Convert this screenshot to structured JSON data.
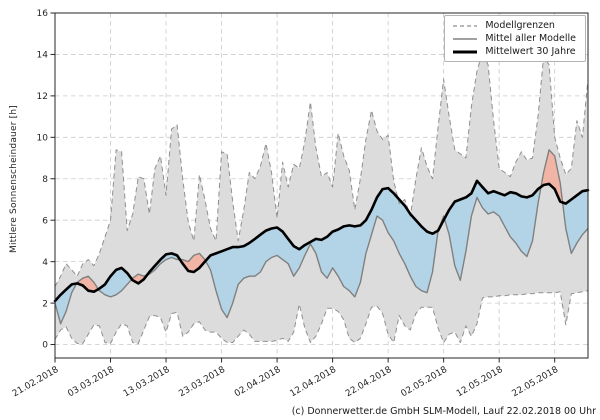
{
  "caption": "(c) Donnerwetter.de GmbH SLM-Modell, Lauf 22.02.2018 00 Uhr",
  "chart_data": {
    "type": "line",
    "title": "",
    "xlabel": "",
    "ylabel": "Mittlere Sonnenscheindauer [h]",
    "ylim": [
      -0.65,
      16
    ],
    "y_ticks": [
      0,
      2,
      4,
      6,
      8,
      10,
      12,
      14,
      16
    ],
    "x_total_days": 96,
    "x_tick_days": [
      0,
      10,
      20,
      30,
      40,
      50,
      60,
      70,
      80,
      90
    ],
    "x_tick_labels": [
      "21.02.2018",
      "03.03.2018",
      "13.03.2018",
      "23.03.2018",
      "02.04.2018",
      "12.04.2018",
      "22.04.2018",
      "02.05.2018",
      "12.05.2018",
      "22.05.2018"
    ],
    "grid": "dashed",
    "legend_position": "top-right",
    "legend": [
      {
        "label": "Modellgrenzen",
        "style": "dashed-gray"
      },
      {
        "label": "Mittel aller Modelle",
        "style": "solid-gray"
      },
      {
        "label": "Mittelwert 30 Jahre",
        "style": "thick-black"
      }
    ],
    "series": [
      {
        "name": "Modellgrenzen (Maximum)",
        "values": [
          2.8,
          3.3,
          3.9,
          3.6,
          3.3,
          3.9,
          4.1,
          3.8,
          4.4,
          5.2,
          6.0,
          9.4,
          9.3,
          5.5,
          6.3,
          8.1,
          8.0,
          6.3,
          8.5,
          9.1,
          7.2,
          10.4,
          10.6,
          8.0,
          5.9,
          5.0,
          8.2,
          7.0,
          5.6,
          5.0,
          9.3,
          9.2,
          6.9,
          5.0,
          6.5,
          8.3,
          8.0,
          8.6,
          9.7,
          8.3,
          6.1,
          8.8,
          7.6,
          8.7,
          8.5,
          9.8,
          11.7,
          9.5,
          8.1,
          8.3,
          7.6,
          10.2,
          9.1,
          8.4,
          6.5,
          8.0,
          9.9,
          11.3,
          10.3,
          9.9,
          10.1,
          7.9,
          6.8,
          7.0,
          6.2,
          8.0,
          9.5,
          8.6,
          8.0,
          10.5,
          12.8,
          11.0,
          9.4,
          9.2,
          9.0,
          11.5,
          13.2,
          14.1,
          13.5,
          10.8,
          8.5,
          8.3,
          8.1,
          8.8,
          9.3,
          8.9,
          9.0,
          11.0,
          13.9,
          13.5,
          10.0,
          9.0,
          8.2,
          8.5,
          10.8,
          10.0,
          12.8
        ]
      },
      {
        "name": "Modellgrenzen (Minimum)",
        "values": [
          0.25,
          0.7,
          0.85,
          0.3,
          0.05,
          0.05,
          0.5,
          0.95,
          0.9,
          0.1,
          0.05,
          0.6,
          1.0,
          0.9,
          0.1,
          0.05,
          0.7,
          1.35,
          1.4,
          1.3,
          0.6,
          1.5,
          1.55,
          0.4,
          0.6,
          1.0,
          1.1,
          0.7,
          0.6,
          0.6,
          0.3,
          0.1,
          0.1,
          0.4,
          0.7,
          0.5,
          0.15,
          0.15,
          0.15,
          0.15,
          0.2,
          0.3,
          0.15,
          0.6,
          1.95,
          0.8,
          0.1,
          0.4,
          1.0,
          1.75,
          1.75,
          1.6,
          1.2,
          0.3,
          0.1,
          0.3,
          1.0,
          1.8,
          1.85,
          1.5,
          0.5,
          0.1,
          1.4,
          0.9,
          0.7,
          1.5,
          1.8,
          1.8,
          1.8,
          0.8,
          0.1,
          0.5,
          0.6,
          0.1,
          0.9,
          0.4,
          1.0,
          2.25,
          2.3,
          2.3,
          2.35,
          2.35,
          2.4,
          2.4,
          2.4,
          2.45,
          2.45,
          2.5,
          2.5,
          2.5,
          2.5,
          2.55,
          0.95,
          2.45,
          2.5,
          2.55,
          2.6
        ]
      },
      {
        "name": "Mittel aller Modelle",
        "values": [
          2.0,
          1.0,
          1.6,
          2.5,
          3.0,
          3.2,
          3.3,
          3.0,
          2.6,
          2.4,
          2.3,
          2.4,
          2.6,
          2.9,
          3.2,
          3.4,
          3.3,
          3.4,
          3.6,
          3.9,
          4.1,
          4.2,
          4.1,
          4.1,
          4.0,
          4.3,
          4.4,
          4.1,
          3.6,
          2.6,
          1.7,
          1.3,
          2.0,
          2.9,
          3.2,
          3.3,
          3.3,
          3.5,
          4.0,
          4.2,
          4.3,
          4.1,
          3.9,
          3.3,
          3.7,
          4.3,
          4.85,
          4.4,
          3.5,
          3.2,
          3.7,
          3.3,
          2.8,
          2.6,
          2.3,
          3.0,
          4.4,
          5.3,
          6.2,
          6.0,
          5.4,
          5.0,
          4.4,
          3.9,
          3.3,
          2.8,
          2.6,
          2.5,
          3.5,
          5.5,
          6.2,
          5.3,
          3.8,
          3.1,
          4.5,
          6.2,
          7.1,
          6.6,
          6.3,
          6.4,
          6.2,
          5.7,
          5.2,
          4.9,
          4.5,
          4.25,
          5.0,
          6.8,
          8.3,
          9.4,
          9.1,
          7.8,
          5.6,
          4.4,
          4.9,
          5.3,
          5.6
        ]
      },
      {
        "name": "Mittelwert 30 Jahre",
        "values": [
          2.1,
          2.4,
          2.65,
          2.9,
          2.95,
          2.85,
          2.6,
          2.55,
          2.7,
          2.9,
          3.3,
          3.6,
          3.7,
          3.45,
          3.1,
          2.95,
          3.15,
          3.5,
          3.8,
          4.1,
          4.35,
          4.4,
          4.3,
          3.9,
          3.55,
          3.5,
          3.7,
          4.0,
          4.3,
          4.4,
          4.5,
          4.6,
          4.7,
          4.7,
          4.75,
          4.9,
          5.1,
          5.3,
          5.5,
          5.6,
          5.65,
          5.45,
          5.1,
          4.75,
          4.6,
          4.8,
          4.95,
          5.1,
          5.05,
          5.2,
          5.45,
          5.55,
          5.7,
          5.75,
          5.7,
          5.75,
          6.0,
          6.5,
          7.1,
          7.5,
          7.55,
          7.3,
          7.0,
          6.7,
          6.3,
          6.0,
          5.7,
          5.45,
          5.35,
          5.5,
          6.0,
          6.5,
          6.9,
          7.0,
          7.1,
          7.3,
          7.9,
          7.6,
          7.3,
          7.4,
          7.3,
          7.2,
          7.35,
          7.3,
          7.15,
          7.1,
          7.2,
          7.5,
          7.7,
          7.75,
          7.5,
          6.9,
          6.8,
          7.0,
          7.2,
          7.4,
          7.45
        ]
      }
    ],
    "colors": {
      "band_fill": "#dcdcdc",
      "bound_line": "#8f8f8f",
      "model_line": "#808080",
      "climate_line": "#000000",
      "above_fill": "#f2b4a5",
      "below_fill": "#b3d4e6",
      "grid": "#c9c9c9",
      "spine": "#262626",
      "text": "#262626"
    }
  }
}
